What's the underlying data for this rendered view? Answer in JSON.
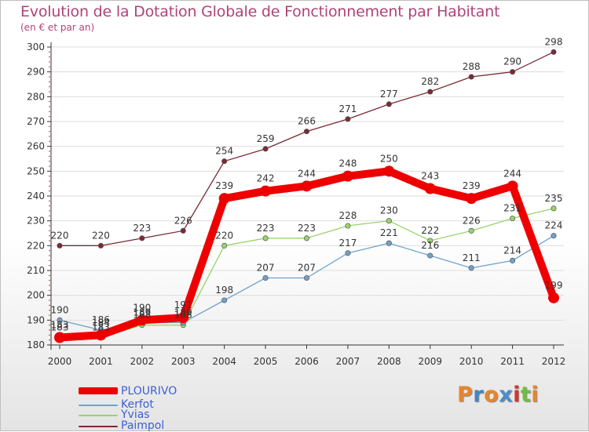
{
  "title": "Evolution de la Dotation Globale de Fonctionnement par Habitant",
  "subtitle": "(en € et par an)",
  "logo": [
    "P",
    "r",
    "o",
    "x",
    "i",
    "t",
    "i"
  ],
  "colors": {
    "title": "#b0437a",
    "axis": "#333333",
    "grid": "#dddddd",
    "logo": [
      "#e8852a",
      "#3f87c6",
      "#e8852a",
      "#4b8ec9",
      "#d6352f",
      "#6cbf3a",
      "#e8852a"
    ]
  },
  "chart_data": {
    "type": "line",
    "title": "Evolution de la Dotation Globale de Fonctionnement par Habitant",
    "subtitle": "(en € et par an)",
    "xlabel": "",
    "ylabel": "",
    "x": [
      2000,
      2001,
      2002,
      2003,
      2004,
      2005,
      2006,
      2007,
      2008,
      2009,
      2010,
      2011,
      2012
    ],
    "ylim": [
      180,
      300
    ],
    "yticks": [
      180,
      190,
      200,
      210,
      220,
      230,
      240,
      250,
      260,
      270,
      280,
      290,
      300
    ],
    "grid": true,
    "legend_position": "bottom-left",
    "series": [
      {
        "name": "Paimpol",
        "color": "#7b2a35",
        "emphasis": false,
        "values": [
          220,
          220,
          223,
          226,
          254,
          259,
          266,
          271,
          277,
          282,
          288,
          290,
          298
        ]
      },
      {
        "name": "Yvias",
        "color": "#99d46b",
        "emphasis": false,
        "values": [
          183,
          183,
          188,
          188,
          220,
          223,
          223,
          228,
          230,
          222,
          226,
          231,
          235
        ]
      },
      {
        "name": "Kerfot",
        "color": "#6fa2cc",
        "emphasis": false,
        "values": [
          190,
          186,
          189,
          189,
          198,
          207,
          207,
          217,
          221,
          216,
          211,
          214,
          224
        ]
      },
      {
        "name": "PLOURIVO",
        "color": "#ee0000",
        "emphasis": true,
        "values": [
          183,
          184,
          190,
          191,
          239,
          242,
          244,
          248,
          250,
          243,
          239,
          244,
          199
        ]
      }
    ],
    "legend": [
      {
        "name": "PLOURIVO",
        "color": "#ee0000",
        "text_color": "#3b5fd6"
      },
      {
        "name": "Kerfot",
        "color": "#6fa2cc",
        "text_color": "#3b5fd6"
      },
      {
        "name": "Yvias",
        "color": "#99d46b",
        "text_color": "#3b5fd6"
      },
      {
        "name": "Paimpol",
        "color": "#7b2a35",
        "text_color": "#3b5fd6"
      }
    ]
  }
}
